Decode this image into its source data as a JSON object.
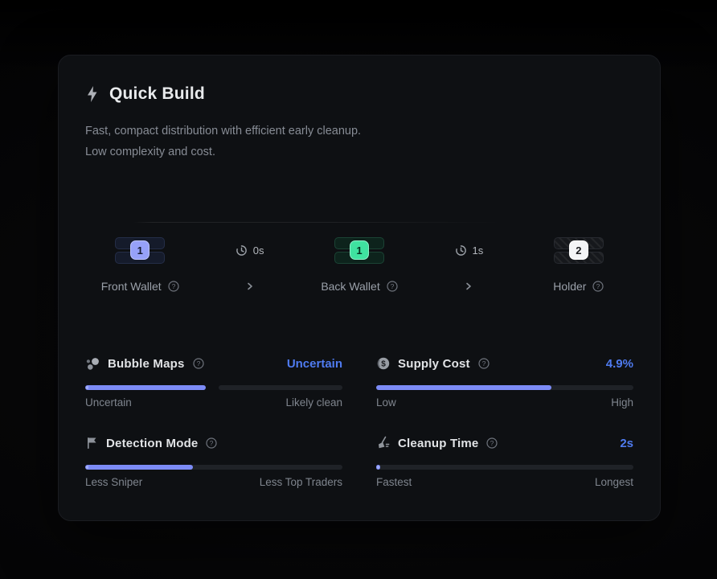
{
  "card": {
    "title": "Quick Build",
    "description_1": "Fast, compact distribution with efficient early cleanup.",
    "description_2": "Low complexity and cost."
  },
  "flow": {
    "nodes": [
      {
        "label": "Front Wallet",
        "count": "1",
        "accent": "#96a1f8"
      },
      {
        "label": "Back Wallet",
        "count": "1",
        "accent": "#3fe2a0"
      },
      {
        "label": "Holder",
        "count": "2",
        "accent": "#f4f5f7"
      }
    ],
    "transitions": [
      {
        "delay": "0s"
      },
      {
        "delay": "1s"
      }
    ]
  },
  "metrics": [
    {
      "label": "Bubble Maps",
      "value": "Uncertain",
      "fill_percent": 47,
      "left_label": "Uncertain",
      "right_label": "Likely clean",
      "style": "segmented"
    },
    {
      "label": "Supply Cost",
      "value": "4.9%",
      "fill_percent": 68,
      "left_label": "Low",
      "right_label": "High",
      "style": "continuous"
    },
    {
      "label": "Detection Mode",
      "value": "",
      "fill_percent": 42,
      "left_label": "Less Sniper",
      "right_label": "Less Top Traders",
      "style": "continuous"
    },
    {
      "label": "Cleanup Time",
      "value": "2s",
      "fill_percent": 1.5,
      "left_label": "Fastest",
      "right_label": "Longest",
      "style": "continuous"
    }
  ],
  "icons": {
    "header": "bolt-icon",
    "timing": "clock-icon",
    "help": "help-icon",
    "transition": "chevron-right-icon",
    "metric_icons": [
      "bubbles-icon",
      "coin-icon",
      "flag-icon",
      "broom-icon"
    ]
  },
  "colors": {
    "card_bg": "#0e1013",
    "accent_fill": "#7c8bf6",
    "value_blue": "#4f7bf0",
    "badge_blue": "#96a1f8",
    "badge_green": "#3fe2a0",
    "badge_white": "#f4f5f7",
    "track": "#1f2227"
  }
}
